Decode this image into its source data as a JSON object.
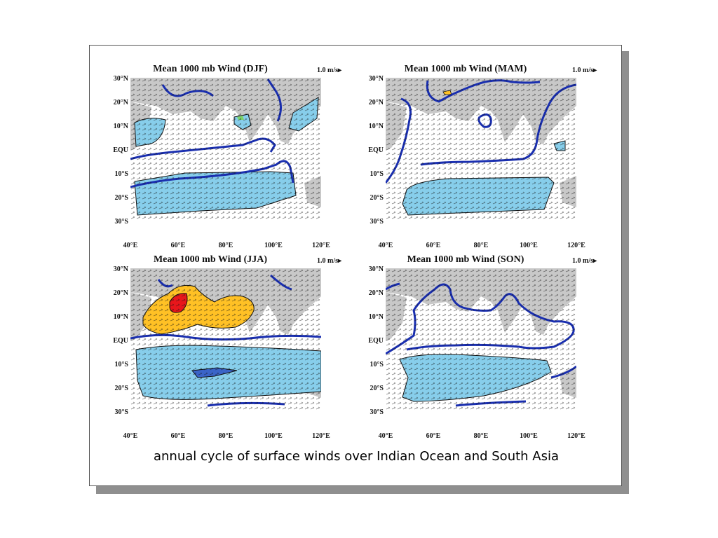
{
  "panels": [
    {
      "title": "Mean 1000 mb Wind (DJF)",
      "scale": "1.0 m/s"
    },
    {
      "title": "Mean 1000 mb Wind (MAM)",
      "scale": "1.0 m/s"
    },
    {
      "title": "Mean 1000 mb Wind (JJA)",
      "scale": "1.0 m/s"
    },
    {
      "title": "Mean 1000 mb Wind (SON)",
      "scale": "1.0 m/s"
    }
  ],
  "y_ticks": [
    "30°N",
    "20°N",
    "10°N",
    "EQU",
    "10°S",
    "20°S",
    "30°S"
  ],
  "x_ticks": [
    "40°E",
    "60°E",
    "80°E",
    "100°E",
    "120°E"
  ],
  "caption": "annual cycle of surface winds over Indian Ocean and South Asia",
  "colors": {
    "land": "#c8c8c8",
    "negative_zonal": "#87ceeb",
    "positive_zonal_strong": "#ffc125",
    "positive_zonal_max": "#e8161b",
    "zero_contour": "#1a2fb0"
  }
}
